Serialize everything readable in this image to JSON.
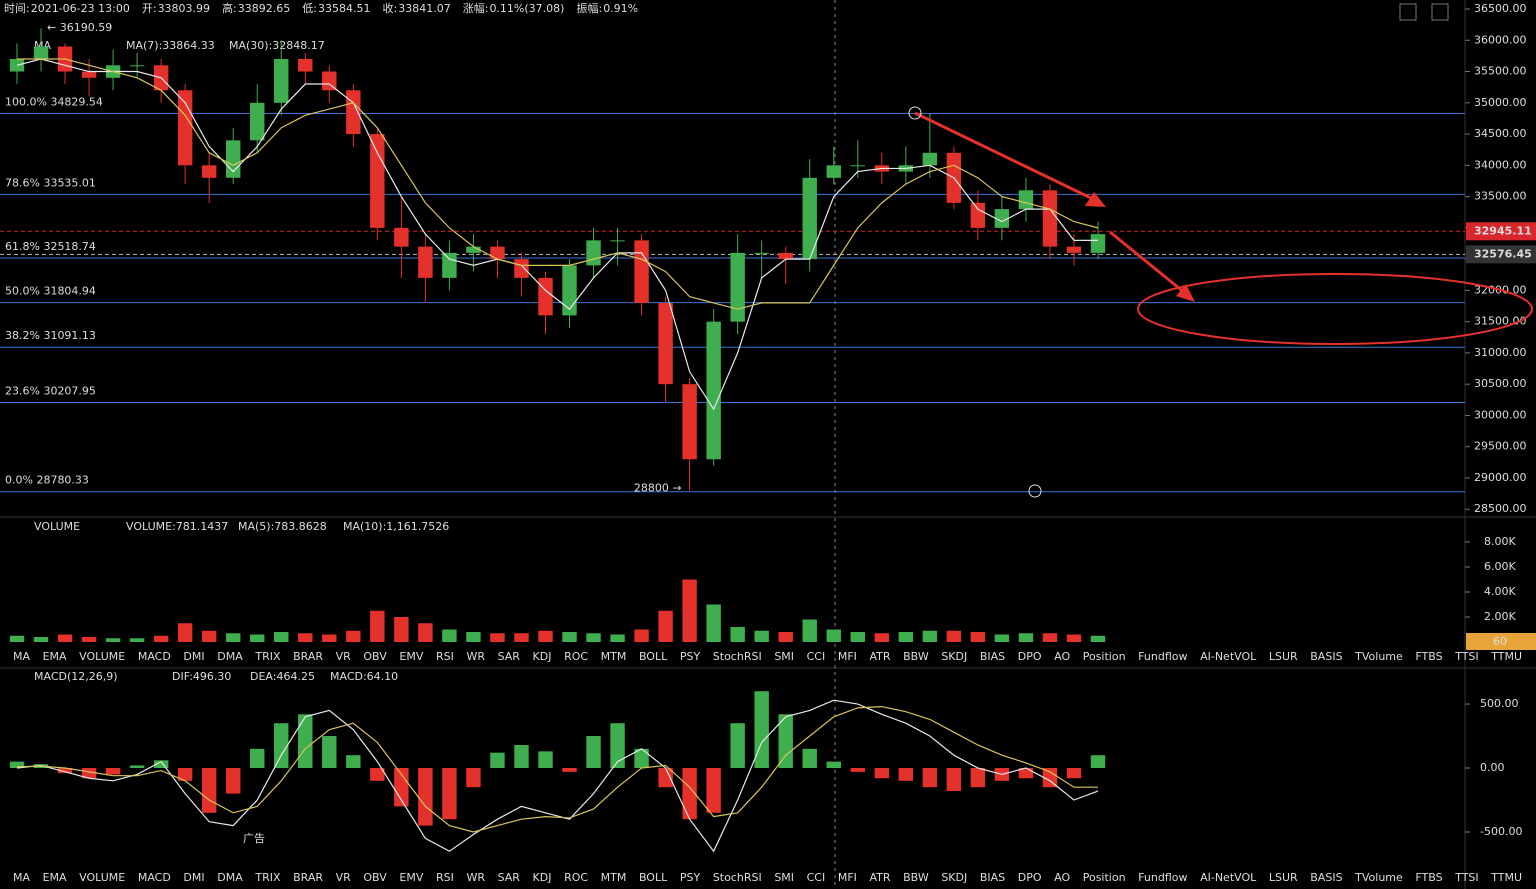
{
  "chart_data": {
    "type": "candlestick",
    "info": [
      {
        "label": "时间:",
        "value": "2021-06-23 13:00"
      },
      {
        "label": "开:",
        "value": "33803.99"
      },
      {
        "label": "高:",
        "value": "33892.65"
      },
      {
        "label": "低:",
        "value": "33584.51"
      },
      {
        "label": "收:",
        "value": "33841.07"
      },
      {
        "label": "涨幅:",
        "value": "0.11%(37.08)"
      },
      {
        "label": "振幅:",
        "value": "0.91%"
      }
    ],
    "ma_legend": {
      "name": "MA",
      "ma7": "MA(7):33864.33",
      "ma30": "MA(30):32848.17"
    },
    "high_label": "← 36190.59",
    "low_label": "28800 →",
    "up_color": "#3fae4f",
    "down_color": "#e5312b",
    "ylim": [
      28400,
      36500
    ],
    "yticks": [
      {
        "value": 36500,
        "label": "36500.00"
      },
      {
        "value": 36000,
        "label": "36000.00"
      },
      {
        "value": 35500,
        "label": "35500.00"
      },
      {
        "value": 35000,
        "label": "35000.00"
      },
      {
        "value": 34500,
        "label": "34500.00"
      },
      {
        "value": 34000,
        "label": "34000.00"
      },
      {
        "value": 33500,
        "label": "33500.00"
      },
      {
        "value": 33000,
        "label": "33000.00"
      },
      {
        "value": 32500,
        "label": "32500.00"
      },
      {
        "value": 32000,
        "label": "32000.00"
      },
      {
        "value": 31500,
        "label": "31500.00"
      },
      {
        "value": 31000,
        "label": "31000.00"
      },
      {
        "value": 30500,
        "label": "30500.00"
      },
      {
        "value": 30000,
        "label": "30000.00"
      },
      {
        "value": 29500,
        "label": "29500.00"
      },
      {
        "value": 29000,
        "label": "29000.00"
      },
      {
        "value": 28500,
        "label": "28500.00"
      }
    ],
    "fib": [
      {
        "value": 34829.54,
        "label": "100.0% 34829.54"
      },
      {
        "value": 33535.01,
        "label": "78.6% 33535.01"
      },
      {
        "value": 32518.74,
        "label": "61.8% 32518.74"
      },
      {
        "value": 31804.94,
        "label": "50.0% 31804.94"
      },
      {
        "value": 31091.13,
        "label": "38.2% 31091.13"
      },
      {
        "value": 30207.95,
        "label": "23.6% 30207.95"
      },
      {
        "value": 28780.33,
        "label": "0.0% 28780.33"
      }
    ],
    "price_tags": [
      {
        "value": 32945.11,
        "label": "32945.11",
        "color": "#d8272c"
      },
      {
        "value": 32576.45,
        "label": "32576.45",
        "color": "#333"
      }
    ],
    "open": [
      35500,
      35700,
      35900,
      35500,
      35400,
      35600,
      35600,
      35200,
      34000,
      33800,
      34400,
      35000,
      35700,
      35500,
      35200,
      34500,
      33000,
      32700,
      32200,
      32600,
      32700,
      32500,
      32200,
      31600,
      32400,
      32800,
      32800,
      31800,
      30500,
      29300,
      31500,
      32600,
      32600,
      32500,
      33800,
      34000,
      34000,
      33900,
      34000,
      34200,
      33400,
      33000,
      33300,
      33600,
      32700,
      32600
    ],
    "high": [
      35950,
      36190,
      35950,
      35700,
      35850,
      35800,
      35700,
      35300,
      34200,
      34600,
      35300,
      36000,
      35800,
      35600,
      35300,
      34600,
      33500,
      32900,
      32800,
      32900,
      32800,
      32600,
      32300,
      32500,
      33000,
      33000,
      32900,
      31900,
      30600,
      31700,
      32900,
      32800,
      32700,
      34100,
      34300,
      34400,
      34200,
      34300,
      34829,
      34300,
      33600,
      33500,
      33800,
      33700,
      32900,
      33100
    ],
    "low": [
      35300,
      35500,
      35300,
      35100,
      35200,
      35400,
      35000,
      33700,
      33400,
      33700,
      34200,
      34800,
      35300,
      35000,
      34300,
      32800,
      32200,
      31800,
      32000,
      32300,
      32200,
      31900,
      31300,
      31400,
      32200,
      32400,
      31600,
      30200,
      28800,
      29200,
      31300,
      32200,
      32100,
      32300,
      33700,
      33800,
      33700,
      33700,
      33800,
      33300,
      32800,
      32800,
      33100,
      32500,
      32400,
      32500
    ],
    "close": [
      35700,
      35900,
      35500,
      35400,
      35600,
      35600,
      35200,
      34000,
      33800,
      34400,
      35000,
      35700,
      35500,
      35200,
      34500,
      33000,
      32700,
      32200,
      32600,
      32700,
      32500,
      32200,
      31600,
      32400,
      32800,
      32800,
      31800,
      30500,
      29300,
      31500,
      32600,
      32600,
      32500,
      33800,
      34000,
      34000,
      33900,
      34000,
      34200,
      33400,
      33000,
      33300,
      33600,
      32700,
      32600,
      32900
    ],
    "series": [
      {
        "name": "MA(7)",
        "color": "#e8e8e8",
        "values": [
          35600,
          35700,
          35600,
          35500,
          35500,
          35500,
          35400,
          35000,
          34300,
          33900,
          34300,
          34900,
          35300,
          35300,
          35000,
          34200,
          33500,
          32900,
          32500,
          32400,
          32500,
          32400,
          32000,
          31700,
          32200,
          32600,
          32600,
          32000,
          30700,
          30100,
          31000,
          32200,
          32500,
          32500,
          33500,
          33900,
          33950,
          33950,
          34000,
          33800,
          33300,
          33100,
          33300,
          33300,
          32800,
          32800
        ]
      },
      {
        "name": "MA(30)",
        "color": "#d9c45a",
        "values": [
          35700,
          35700,
          35700,
          35600,
          35500,
          35400,
          35200,
          34800,
          34200,
          34000,
          34200,
          34600,
          34800,
          34900,
          35000,
          34600,
          34000,
          33400,
          33000,
          32700,
          32500,
          32400,
          32400,
          32400,
          32500,
          32600,
          32500,
          32300,
          31900,
          31800,
          31700,
          31800,
          31800,
          31800,
          32400,
          33000,
          33400,
          33700,
          33900,
          34000,
          33800,
          33500,
          33400,
          33300,
          33100,
          33000
        ]
      }
    ],
    "volume": {
      "legend": [
        "VOLUME",
        "VOLUME:781.1437",
        "MA(5):783.8628",
        "MA(10):1,161.7526"
      ],
      "ylim": [
        0,
        8560
      ],
      "yticks": [
        {
          "value": 8000,
          "label": "8.00K"
        },
        {
          "value": 6000,
          "label": "6.00K"
        },
        {
          "value": 4000,
          "label": "4.00K"
        },
        {
          "value": 2000,
          "label": "2.00K"
        }
      ],
      "badge": "60",
      "values": [
        500,
        400,
        600,
        400,
        300,
        300,
        500,
        1500,
        900,
        700,
        600,
        800,
        700,
        600,
        900,
        2500,
        2000,
        1500,
        1000,
        800,
        700,
        700,
        900,
        800,
        700,
        600,
        1000,
        2500,
        5000,
        3000,
        1200,
        900,
        800,
        1800,
        1000,
        800,
        700,
        800,
        900,
        900,
        800,
        600,
        700,
        700,
        600,
        500
      ]
    },
    "macd": {
      "legend": [
        "MACD(12,26,9)",
        "DIF:496.30",
        "DEA:464.25",
        "MACD:64.10"
      ],
      "ylim": [
        -758,
        766
      ],
      "yticks": [
        {
          "value": 500,
          "label": "500.00"
        },
        {
          "value": 0,
          "label": "0.00"
        },
        {
          "value": -500,
          "label": "-500.00"
        }
      ],
      "ad": "广告",
      "hist": [
        50,
        30,
        -40,
        -80,
        -50,
        20,
        60,
        -100,
        -350,
        -200,
        150,
        350,
        420,
        250,
        100,
        -100,
        -300,
        -450,
        -400,
        -150,
        120,
        180,
        130,
        -30,
        250,
        350,
        150,
        -150,
        -400,
        -350,
        350,
        600,
        420,
        150,
        50,
        -30,
        -80,
        -100,
        -150,
        -180,
        -150,
        -100,
        -80,
        -150,
        -80,
        100
      ],
      "series": [
        {
          "name": "DIF",
          "color": "#e8e8e8",
          "values": [
            0,
            20,
            -30,
            -80,
            -100,
            -50,
            50,
            -200,
            -420,
            -450,
            -250,
            100,
            400,
            450,
            300,
            50,
            -250,
            -550,
            -650,
            -520,
            -400,
            -300,
            -350,
            -400,
            -200,
            50,
            150,
            0,
            -400,
            -650,
            -250,
            200,
            400,
            450,
            530,
            500,
            420,
            350,
            250,
            100,
            0,
            -50,
            0,
            -100,
            -250,
            -180
          ]
        },
        {
          "name": "DEA",
          "color": "#d9c45a",
          "values": [
            10,
            15,
            0,
            -30,
            -60,
            -60,
            -20,
            -100,
            -250,
            -350,
            -300,
            -100,
            150,
            300,
            350,
            200,
            -50,
            -300,
            -450,
            -500,
            -450,
            -400,
            -380,
            -390,
            -320,
            -150,
            0,
            20,
            -150,
            -380,
            -350,
            -150,
            100,
            250,
            400,
            470,
            480,
            440,
            380,
            280,
            180,
            100,
            40,
            -30,
            -150,
            -150
          ]
        }
      ]
    },
    "indicators": [
      "MA",
      "EMA",
      "VOLUME",
      "MACD",
      "DMI",
      "DMA",
      "TRIX",
      "BRAR",
      "VR",
      "OBV",
      "EMV",
      "RSI",
      "WR",
      "SAR",
      "KDJ",
      "ROC",
      "MTM",
      "BOLL",
      "PSY",
      "StochRSI",
      "SMI",
      "CCI",
      "MFI",
      "ATR",
      "BBW",
      "SKDJ",
      "BIAS",
      "DPO",
      "AO",
      "Position",
      "Fundflow",
      "AI-NetVOL",
      "LSUR",
      "BASIS",
      "TVolume",
      "FTBS",
      "TTSI",
      "TTMU"
    ],
    "indicator_rows": [
      {
        "active": 2,
        "dim": 3
      },
      {
        "active": 3,
        "dim": 2
      }
    ]
  }
}
